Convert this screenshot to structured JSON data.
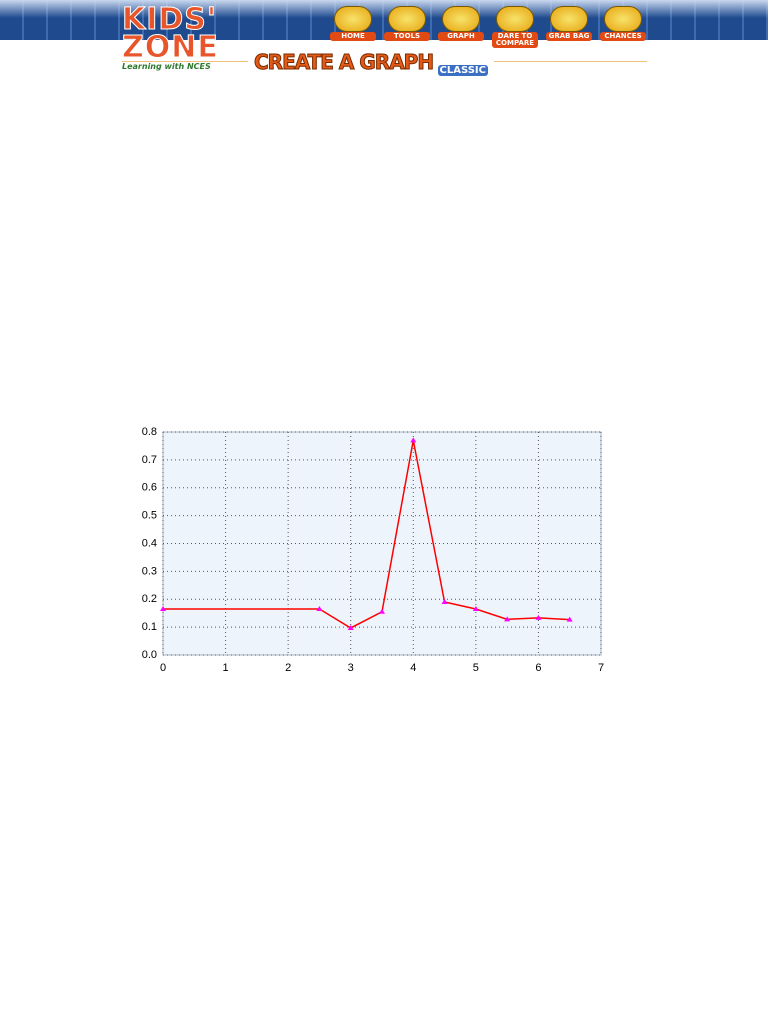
{
  "header": {
    "logo": "KIDS' ZONE",
    "tagline": "Learning with NCES",
    "nav": [
      "HOME",
      "TOOLS",
      "GRAPH",
      "DARE TO COMPARE",
      "GRAB BAG",
      "CHANCES"
    ]
  },
  "banner": {
    "title": "CREATE A GRAPH",
    "subtitle": "CLASSIC"
  },
  "chart_data": {
    "type": "line",
    "x": [
      0,
      2.5,
      3,
      3.5,
      4,
      4.5,
      5,
      5.5,
      6,
      6.5
    ],
    "series": [
      {
        "color": "#ff0000",
        "marker_color": "#ff00ff",
        "values": [
          0.165,
          0.165,
          0.097,
          0.155,
          0.77,
          0.19,
          0.165,
          0.128,
          0.133,
          0.127
        ]
      }
    ],
    "xlim": [
      0,
      7
    ],
    "xticks": [
      0,
      1,
      2,
      3,
      4,
      5,
      6,
      7
    ],
    "ylim": [
      0,
      0.8
    ],
    "yticks": [
      {
        "value": 0,
        "label": "0.0"
      },
      0.1,
      0.2,
      0.3,
      0.4,
      0.5,
      0.6,
      0.7,
      0.8
    ],
    "grid": true
  }
}
